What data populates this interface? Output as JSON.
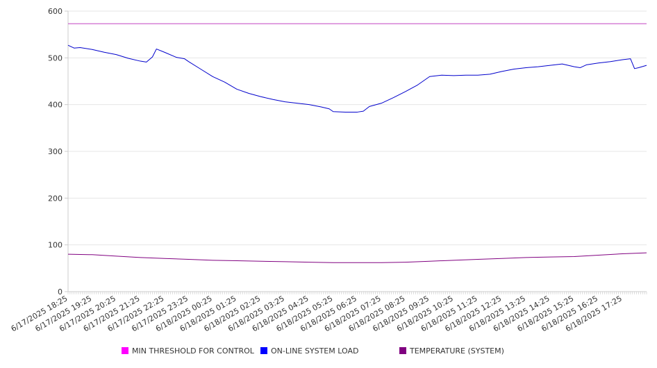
{
  "chart_data": {
    "type": "line",
    "title": "",
    "xlabel": "",
    "ylabel": "",
    "ylim": [
      0,
      600
    ],
    "yticks": [
      0,
      100,
      200,
      300,
      400,
      500,
      600
    ],
    "grid": true,
    "legend_position": "bottom",
    "x_tick_labels": [
      "6/17/2025 18:25",
      "6/17/2025 19:25",
      "6/17/2025 20:25",
      "6/17/2025 21:25",
      "6/17/2025 22:25",
      "6/17/2025 23:25",
      "6/18/2025 00:25",
      "6/18/2025 01:25",
      "6/18/2025 02:25",
      "6/18/2025 03:25",
      "6/18/2025 04:25",
      "6/18/2025 05:25",
      "6/18/2025 06:25",
      "6/18/2025 07:25",
      "6/18/2025 08:25",
      "6/18/2025 09:25",
      "6/18/2025 10:25",
      "6/18/2025 11:25",
      "6/18/2025 12:25",
      "6/18/2025 13:25",
      "6/18/2025 14:25",
      "6/18/2025 15:25",
      "6/18/2025 16:25",
      "6/18/2025 17:25"
    ],
    "x_range": [
      "6/17/2025 18:25",
      "6/18/2025 18:25"
    ],
    "series": [
      {
        "name": "MIN THRESHOLD FOR CONTROL",
        "color": "#ff00ff",
        "line_color": "#c040c0",
        "values": [
          [
            "6/17/2025 18:25",
            573
          ],
          [
            "6/18/2025 18:25",
            573
          ]
        ]
      },
      {
        "name": "ON-LINE SYSTEM LOAD",
        "color": "#0000ff",
        "line_color": "#0000cc",
        "values": [
          [
            "6/17/2025 18:25",
            527
          ],
          [
            "6/17/2025 18:40",
            521
          ],
          [
            "6/17/2025 18:55",
            522
          ],
          [
            "6/17/2025 19:25",
            518
          ],
          [
            "6/17/2025 19:55",
            512
          ],
          [
            "6/17/2025 20:25",
            507
          ],
          [
            "6/17/2025 20:55",
            499
          ],
          [
            "6/17/2025 21:25",
            493
          ],
          [
            "6/17/2025 21:40",
            491
          ],
          [
            "6/17/2025 21:55",
            502
          ],
          [
            "6/17/2025 22:05",
            519
          ],
          [
            "6/17/2025 22:25",
            512
          ],
          [
            "6/17/2025 22:55",
            501
          ],
          [
            "6/17/2025 23:15",
            498
          ],
          [
            "6/17/2025 23:25",
            492
          ],
          [
            "6/17/2025 23:55",
            476
          ],
          [
            "6/18/2025 00:25",
            460
          ],
          [
            "6/18/2025 00:55",
            448
          ],
          [
            "6/18/2025 01:25",
            433
          ],
          [
            "6/18/2025 01:55",
            424
          ],
          [
            "6/18/2025 02:25",
            417
          ],
          [
            "6/18/2025 02:55",
            411
          ],
          [
            "6/18/2025 03:25",
            406
          ],
          [
            "6/18/2025 03:55",
            403
          ],
          [
            "6/18/2025 04:25",
            400
          ],
          [
            "6/18/2025 04:55",
            395
          ],
          [
            "6/18/2025 05:15",
            391
          ],
          [
            "6/18/2025 05:25",
            385
          ],
          [
            "6/18/2025 05:55",
            384
          ],
          [
            "6/18/2025 06:25",
            384
          ],
          [
            "6/18/2025 06:40",
            386
          ],
          [
            "6/18/2025 06:55",
            396
          ],
          [
            "6/18/2025 07:25",
            403
          ],
          [
            "6/18/2025 07:55",
            415
          ],
          [
            "6/18/2025 08:25",
            428
          ],
          [
            "6/18/2025 08:55",
            442
          ],
          [
            "6/18/2025 09:25",
            460
          ],
          [
            "6/18/2025 09:55",
            463
          ],
          [
            "6/18/2025 10:25",
            462
          ],
          [
            "6/18/2025 10:55",
            463
          ],
          [
            "6/18/2025 11:25",
            463
          ],
          [
            "6/18/2025 11:55",
            465
          ],
          [
            "6/18/2025 12:25",
            471
          ],
          [
            "6/18/2025 12:55",
            476
          ],
          [
            "6/18/2025 13:25",
            479
          ],
          [
            "6/18/2025 13:55",
            481
          ],
          [
            "6/18/2025 14:25",
            484
          ],
          [
            "6/18/2025 14:55",
            487
          ],
          [
            "6/18/2025 15:25",
            481
          ],
          [
            "6/18/2025 15:40",
            479
          ],
          [
            "6/18/2025 15:55",
            485
          ],
          [
            "6/18/2025 16:25",
            489
          ],
          [
            "6/18/2025 16:55",
            492
          ],
          [
            "6/18/2025 17:25",
            496
          ],
          [
            "6/18/2025 17:45",
            498
          ],
          [
            "6/18/2025 17:55",
            477
          ],
          [
            "6/18/2025 18:05",
            479
          ],
          [
            "6/18/2025 18:25",
            484
          ]
        ]
      },
      {
        "name": "TEMPERATURE (SYSTEM)",
        "color": "#800080",
        "line_color": "#800080",
        "values": [
          [
            "6/17/2025 18:25",
            80
          ],
          [
            "6/17/2025 19:25",
            79
          ],
          [
            "6/17/2025 20:25",
            76
          ],
          [
            "6/17/2025 21:25",
            73
          ],
          [
            "6/17/2025 22:25",
            71
          ],
          [
            "6/17/2025 23:25",
            69
          ],
          [
            "6/18/2025 00:25",
            67
          ],
          [
            "6/18/2025 01:25",
            66
          ],
          [
            "6/18/2025 02:25",
            65
          ],
          [
            "6/18/2025 03:25",
            64
          ],
          [
            "6/18/2025 04:25",
            63
          ],
          [
            "6/18/2025 05:25",
            62
          ],
          [
            "6/18/2025 06:25",
            62
          ],
          [
            "6/18/2025 07:25",
            62
          ],
          [
            "6/18/2025 08:25",
            63
          ],
          [
            "6/18/2025 09:25",
            65
          ],
          [
            "6/18/2025 10:25",
            67
          ],
          [
            "6/18/2025 11:25",
            69
          ],
          [
            "6/18/2025 12:25",
            71
          ],
          [
            "6/18/2025 13:25",
            73
          ],
          [
            "6/18/2025 14:25",
            74
          ],
          [
            "6/18/2025 15:25",
            75
          ],
          [
            "6/18/2025 16:25",
            78
          ],
          [
            "6/18/2025 17:25",
            81
          ],
          [
            "6/18/2025 18:25",
            83
          ]
        ]
      }
    ]
  }
}
